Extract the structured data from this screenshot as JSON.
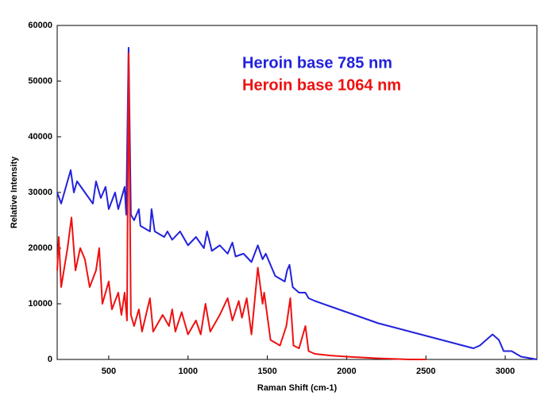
{
  "chart_data": {
    "type": "line",
    "xlabel": "Raman Shift (cm-1)",
    "ylabel": "Relative Intensity",
    "xlim": [
      175,
      3200
    ],
    "xticks": [
      500,
      1000,
      1500,
      2000,
      2500,
      3000
    ],
    "ylim": [
      0,
      60000
    ],
    "yticks": [
      0,
      10000,
      20000,
      30000,
      40000,
      50000,
      60000
    ],
    "grid": false,
    "series": [
      {
        "name": "Heroin base 785 nm",
        "color": "#2222dd",
        "x": [
          175,
          200,
          230,
          260,
          280,
          300,
          350,
          400,
          420,
          450,
          480,
          500,
          540,
          560,
          600,
          610,
          625,
          640,
          660,
          690,
          700,
          760,
          770,
          790,
          850,
          870,
          900,
          950,
          1000,
          1050,
          1100,
          1120,
          1150,
          1200,
          1250,
          1280,
          1300,
          1350,
          1400,
          1440,
          1470,
          1490,
          1550,
          1610,
          1625,
          1640,
          1660,
          1700,
          1740,
          1760,
          1800,
          1900,
          2000,
          2200,
          2400,
          2600,
          2800,
          2840,
          2880,
          2920,
          2960,
          2990,
          3040,
          3100,
          3200
        ],
        "values": [
          30000,
          28000,
          31000,
          34000,
          30000,
          32000,
          30000,
          28000,
          32000,
          29000,
          31000,
          27000,
          30000,
          27000,
          31000,
          26000,
          56000,
          26000,
          25000,
          27000,
          24000,
          23000,
          27000,
          23000,
          22000,
          23000,
          21500,
          23000,
          20500,
          22000,
          20000,
          23000,
          19500,
          20500,
          19000,
          21000,
          18500,
          19000,
          17500,
          20500,
          18000,
          19000,
          15000,
          14000,
          16000,
          17000,
          13000,
          12000,
          12000,
          11000,
          10500,
          9500,
          8500,
          6500,
          5000,
          3500,
          2000,
          2500,
          3500,
          4500,
          3500,
          1500,
          1500,
          500,
          0
        ]
      },
      {
        "name": "Heroin base 1064 nm",
        "color": "#ee1111",
        "x": [
          175,
          185,
          200,
          240,
          265,
          290,
          320,
          350,
          380,
          420,
          440,
          460,
          500,
          520,
          560,
          580,
          600,
          615,
          625,
          640,
          660,
          690,
          710,
          760,
          780,
          840,
          880,
          900,
          920,
          960,
          1000,
          1050,
          1080,
          1110,
          1140,
          1200,
          1250,
          1280,
          1320,
          1340,
          1370,
          1400,
          1440,
          1470,
          1480,
          1520,
          1580,
          1620,
          1645,
          1665,
          1700,
          1740,
          1760,
          1800,
          1900,
          2000,
          2200,
          2400,
          2500
        ],
        "values": [
          16000,
          22000,
          13000,
          20000,
          25500,
          16000,
          20000,
          18000,
          13000,
          16000,
          20000,
          10000,
          14000,
          9000,
          12000,
          8000,
          12000,
          7000,
          55000,
          8000,
          6000,
          9000,
          5000,
          11000,
          5000,
          8000,
          6000,
          9000,
          5000,
          8500,
          4500,
          7000,
          4500,
          10000,
          5000,
          8000,
          11000,
          7000,
          10500,
          7500,
          11000,
          4500,
          16500,
          10000,
          12000,
          3500,
          2500,
          6000,
          11000,
          2500,
          2000,
          6000,
          1500,
          1000,
          700,
          500,
          200,
          0,
          0
        ]
      }
    ]
  }
}
